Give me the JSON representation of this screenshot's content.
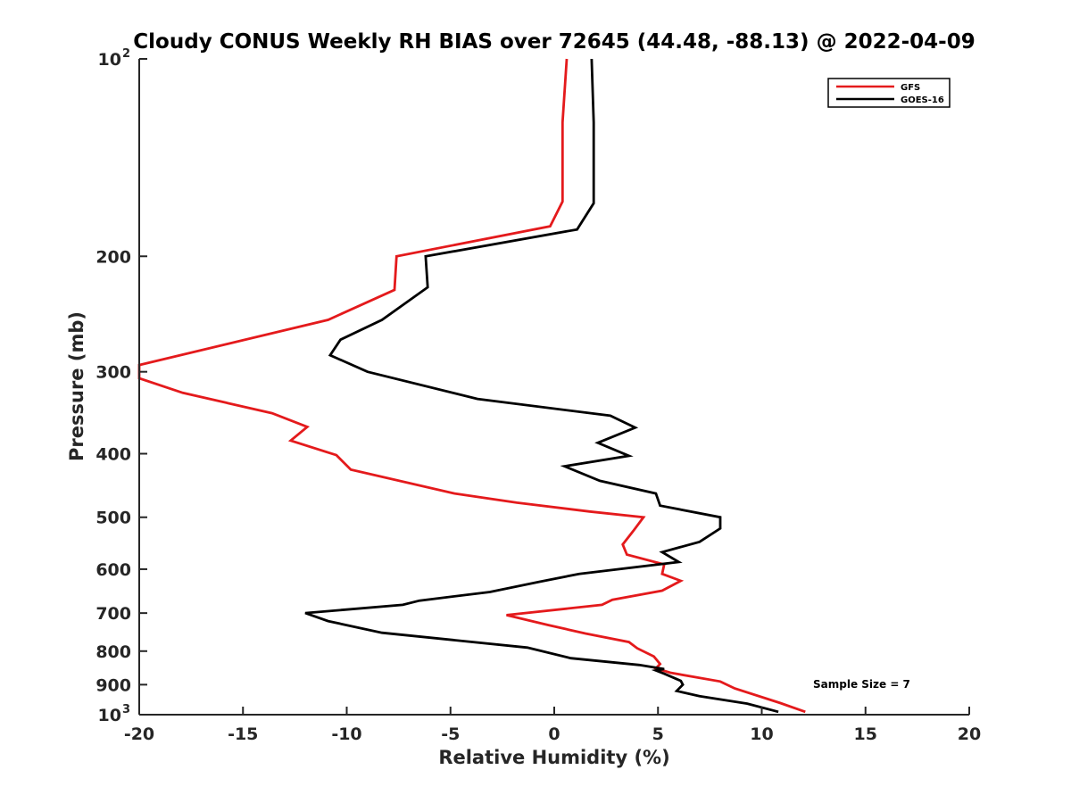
{
  "chart_data": {
    "type": "line",
    "title": "Cloudy CONUS Weekly RH BIAS over 72645 (44.48, -88.13) @ 2022-04-09",
    "xlabel": "Relative Humidity (%)",
    "ylabel": "Pressure (mb)",
    "xlim": [
      -20,
      20
    ],
    "ylim": [
      100,
      1000
    ],
    "y_scale": "log",
    "y_reversed": true,
    "x_ticks": [
      "-20",
      "-15",
      "-10",
      "-5",
      "0",
      "5",
      "10",
      "15",
      "20"
    ],
    "y_ticks": [
      {
        "value": 100,
        "base": "10",
        "exp": "2"
      },
      {
        "value": 200,
        "label": "200"
      },
      {
        "value": 300,
        "label": "300"
      },
      {
        "value": 400,
        "label": "400"
      },
      {
        "value": 500,
        "label": "500"
      },
      {
        "value": 600,
        "label": "600"
      },
      {
        "value": 700,
        "label": "700"
      },
      {
        "value": 800,
        "label": "800"
      },
      {
        "value": 900,
        "label": "900"
      },
      {
        "value": 1000,
        "base": "10",
        "exp": "3"
      }
    ],
    "grid": false,
    "legend_position": "top-right",
    "annotation": "Sample Size = 7",
    "series": [
      {
        "name": "GFS",
        "color": "#e41a1c",
        "points": [
          [
            0.6,
            100
          ],
          [
            0.4,
            125
          ],
          [
            0.4,
            150
          ],
          [
            0.4,
            165
          ],
          [
            -0.2,
            180
          ],
          [
            -7.6,
            200
          ],
          [
            -7.7,
            225
          ],
          [
            -10.9,
            250
          ],
          [
            -20.0,
            293
          ],
          [
            -20.0,
            307
          ],
          [
            -17.9,
            323
          ],
          [
            -13.6,
            347
          ],
          [
            -11.9,
            364
          ],
          [
            -12.7,
            382
          ],
          [
            -10.5,
            402
          ],
          [
            -9.8,
            423
          ],
          [
            -4.8,
            460
          ],
          [
            -1.8,
            475
          ],
          [
            1.7,
            490
          ],
          [
            4.3,
            500
          ],
          [
            3.8,
            525
          ],
          [
            3.3,
            550
          ],
          [
            3.5,
            570
          ],
          [
            5.3,
            590
          ],
          [
            5.2,
            610
          ],
          [
            6.1,
            625
          ],
          [
            5.2,
            647
          ],
          [
            2.8,
            668
          ],
          [
            2.3,
            680
          ],
          [
            -2.3,
            705
          ],
          [
            -0.3,
            730
          ],
          [
            1.5,
            752
          ],
          [
            3.6,
            775
          ],
          [
            4.0,
            792
          ],
          [
            4.8,
            815
          ],
          [
            5.1,
            837
          ],
          [
            4.9,
            850
          ],
          [
            5.6,
            863
          ],
          [
            8.0,
            890
          ],
          [
            8.7,
            912
          ],
          [
            10.9,
            960
          ],
          [
            12.1,
            990
          ]
        ]
      },
      {
        "name": "GOES-16",
        "color": "#000000",
        "points": [
          [
            1.8,
            100
          ],
          [
            1.9,
            125
          ],
          [
            1.9,
            150
          ],
          [
            1.9,
            166
          ],
          [
            1.1,
            182
          ],
          [
            -6.2,
            200
          ],
          [
            -6.1,
            223
          ],
          [
            -8.3,
            250
          ],
          [
            -10.3,
            268
          ],
          [
            -10.8,
            283
          ],
          [
            -9.0,
            300
          ],
          [
            -3.7,
            330
          ],
          [
            2.7,
            350
          ],
          [
            3.9,
            365
          ],
          [
            2.1,
            385
          ],
          [
            3.6,
            403
          ],
          [
            0.5,
            418
          ],
          [
            2.2,
            440
          ],
          [
            4.9,
            460
          ],
          [
            5.1,
            480
          ],
          [
            8.0,
            500
          ],
          [
            8.0,
            520
          ],
          [
            7.0,
            545
          ],
          [
            5.2,
            565
          ],
          [
            6.0,
            585
          ],
          [
            1.2,
            610
          ],
          [
            -0.7,
            627
          ],
          [
            -3.1,
            650
          ],
          [
            -6.5,
            670
          ],
          [
            -7.3,
            680
          ],
          [
            -12.0,
            700
          ],
          [
            -10.9,
            720
          ],
          [
            -8.3,
            750
          ],
          [
            -1.3,
            790
          ],
          [
            0.8,
            820
          ],
          [
            4.1,
            840
          ],
          [
            5.3,
            852
          ],
          [
            4.9,
            856
          ],
          [
            5.3,
            866
          ],
          [
            6.1,
            888
          ],
          [
            6.2,
            900
          ],
          [
            5.9,
            920
          ],
          [
            7.0,
            937
          ],
          [
            9.3,
            962
          ],
          [
            10.8,
            990
          ]
        ]
      }
    ]
  }
}
